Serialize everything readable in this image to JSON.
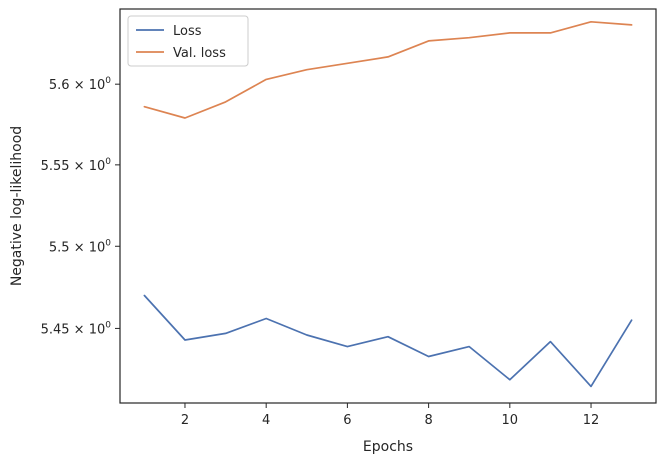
{
  "chart_data": {
    "type": "line",
    "title": "",
    "xlabel": "Epochs",
    "ylabel": "Negative log-likelihood",
    "x": [
      1,
      2,
      3,
      4,
      5,
      6,
      7,
      8,
      9,
      10,
      11,
      12,
      13
    ],
    "series": [
      {
        "name": "Loss",
        "color": "#4c72b0",
        "values": [
          5.47,
          5.443,
          5.447,
          5.456,
          5.446,
          5.439,
          5.445,
          5.433,
          5.439,
          5.419,
          5.442,
          5.415,
          5.455
        ]
      },
      {
        "name": "Val. loss",
        "color": "#dd8452",
        "values": [
          5.586,
          5.579,
          5.589,
          5.603,
          5.609,
          5.613,
          5.617,
          5.627,
          5.629,
          5.632,
          5.632,
          5.639,
          5.637
        ]
      }
    ],
    "xlim": [
      0.4,
      13.6
    ],
    "ylim": [
      5.405,
      5.647
    ],
    "yscale": "log",
    "xticks": [
      {
        "value": 2,
        "label": "2"
      },
      {
        "value": 4,
        "label": "4"
      },
      {
        "value": 6,
        "label": "6"
      },
      {
        "value": 8,
        "label": "8"
      },
      {
        "value": 10,
        "label": "10"
      },
      {
        "value": 12,
        "label": "12"
      }
    ],
    "yticks": [
      {
        "value": 5.45,
        "base": "5.45",
        "exp": "0"
      },
      {
        "value": 5.5,
        "base": "5.5",
        "exp": "0"
      },
      {
        "value": 5.55,
        "base": "5.55",
        "exp": "0"
      },
      {
        "value": 5.6,
        "base": "5.6",
        "exp": "0"
      }
    ],
    "grid": false,
    "legend": "upper-left"
  }
}
